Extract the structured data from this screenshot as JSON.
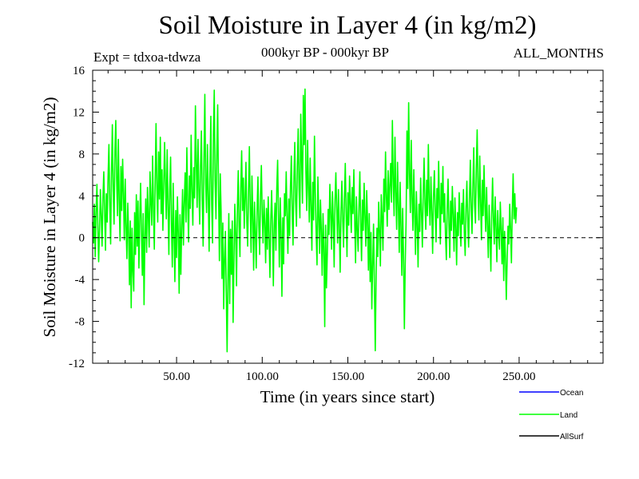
{
  "header": {
    "title": "Soil Moisture in Layer 4 (in kg/m2)",
    "expt": "Expt = tdxoa-tdwza",
    "period": "000kyr BP - 000kyr BP",
    "months": "ALL_MONTHS"
  },
  "chart_data": {
    "type": "line",
    "xlabel": "Time (in years since start)",
    "ylabel": "Soil Moisture in Layer 4 (in kg/m2)",
    "xlim": [
      1,
      299
    ],
    "ylim": [
      -12,
      16
    ],
    "x_ticks": [
      50,
      100,
      150,
      200,
      250
    ],
    "x_tick_labels": [
      "50.00",
      "100.00",
      "150.00",
      "200.00",
      "250.00"
    ],
    "y_ticks": [
      -12,
      -8,
      -4,
      0,
      4,
      8,
      12,
      16
    ],
    "y_tick_labels": [
      "-12",
      "-8",
      "-4",
      "0",
      "4",
      "8",
      "12",
      "16"
    ],
    "zero_line": "dashed",
    "legend_position": "bottom-right",
    "series": [
      {
        "name": "Ocean",
        "color": "#0000ff",
        "x": [],
        "values": []
      },
      {
        "name": "Land",
        "color": "#00ff00",
        "x_start": 1,
        "x_step": 0.5,
        "values": [
          1.5,
          -0.5,
          3.2,
          -1.8,
          2.4,
          5.1,
          1.2,
          -2.3,
          0.8,
          4.6,
          2.2,
          -0.8,
          3.8,
          6.3,
          2.5,
          -1.2,
          4.2,
          1.5,
          5.8,
          8.9,
          3.1,
          -0.6,
          6.2,
          10.8,
          4.5,
          1.3,
          8.3,
          11.2,
          5.7,
          2.1,
          9.4,
          3.4,
          -0.3,
          6.8,
          2.6,
          7.5,
          4.2,
          -0.2,
          5.6,
          1.1,
          -2.0,
          3.3,
          0.4,
          -4.5,
          1.6,
          -6.7,
          0.9,
          -3.2,
          -5.1,
          2.4,
          -1.6,
          4.1,
          -0.8,
          3.5,
          -2.9,
          1.8,
          5.2,
          0.6,
          -3.6,
          2.3,
          -6.4,
          0.1,
          3.7,
          -1.4,
          4.8,
          2.1,
          -0.9,
          6.3,
          3.4,
          1.2,
          7.8,
          2.8,
          -1.1,
          5.4,
          10.9,
          4.6,
          1.5,
          8.2,
          3.7,
          9.6,
          2.3,
          6.5,
          0.7,
          4.9,
          9.1,
          5.3,
          1.8,
          8.4,
          3.2,
          -1.6,
          4.6,
          7.7,
          1.4,
          -2.8,
          5.2,
          0.3,
          -4.2,
          2.6,
          -1.9,
          3.9,
          0.5,
          -5.3,
          2.2,
          -3.5,
          1.1,
          4.6,
          -0.7,
          3.4,
          6.2,
          1.5,
          8.6,
          3.3,
          -0.4,
          5.9,
          2.8,
          9.8,
          4.4,
          1.2,
          6.7,
          3.8,
          12.6,
          7.2,
          2.9,
          9.4,
          4.6,
          1.3,
          6.8,
          10.2,
          3.6,
          -0.8,
          7.5,
          13.7,
          5.2,
          2.4,
          8.9,
          4.1,
          -1.3,
          6.6,
          11.6,
          3.2,
          -0.5,
          9.8,
          14.1,
          5.4,
          1.8,
          8.2,
          12.7,
          4.3,
          -2.2,
          6.1,
          2.5,
          -3.9,
          1.4,
          -6.8,
          -2.1,
          0.6,
          -5.2,
          -10.9,
          -4.1,
          2.3,
          -6.3,
          0.8,
          -3.5,
          1.6,
          -8.1,
          -2.4,
          3.2,
          0.4,
          -4.6,
          2.7,
          6.4,
          1.1,
          -1.8,
          4.8,
          8.3,
          2.6,
          5.7,
          0.9,
          3.6,
          7.2,
          1.5,
          -0.8,
          4.3,
          8.7,
          3.1,
          -1.4,
          5.9,
          2.2,
          -3.1,
          3.4,
          0.6,
          -2.9,
          2.5,
          5.8,
          1.2,
          -1.6,
          4.1,
          6.9,
          2.3,
          -0.5,
          3.6,
          1.4,
          -2.4,
          2.8,
          -1.1,
          3.9,
          0.3,
          -3.8,
          1.7,
          4.5,
          0.9,
          -4.6,
          1.2,
          3.3,
          -1.2,
          4.7,
          7.4,
          2.1,
          -2.8,
          3.8,
          0.6,
          -5.6,
          1.9,
          -2.5,
          4.2,
          2.1,
          6.3,
          1.8,
          -1.5,
          3.7,
          0.2,
          4.9,
          7.8,
          2.4,
          -0.7,
          5.6,
          9.1,
          3.5,
          1.1,
          6.8,
          10.4,
          4.7,
          1.9,
          11.8,
          7.6,
          3.3,
          13.6,
          8.9,
          14.2,
          6.4,
          2.6,
          9.3,
          4.8,
          1.5,
          7.6,
          3.1,
          -1.2,
          5.3,
          1.7,
          9.7,
          4.2,
          0.4,
          -2.6,
          5.8,
          2.1,
          -1.5,
          3.6,
          0.8,
          -3.6,
          2.3,
          -0.9,
          -8.5,
          1.2,
          -4.8,
          -1.6,
          2.7,
          0.3,
          5.1,
          2.2,
          -1.1,
          4.4,
          1.6,
          -2.8,
          3.5,
          6.2,
          2.8,
          -0.5,
          4.6,
          1.3,
          -3.3,
          2.5,
          5.4,
          1.8,
          -0.9,
          3.7,
          7.1,
          2.4,
          -1.8,
          4.3,
          1.2,
          5.9,
          3.2,
          0.5,
          4.8,
          2.3,
          6.5,
          1.6,
          -2.4,
          3.9,
          0.8,
          -1.3,
          2.9,
          6.3,
          1.4,
          -2.2,
          3.6,
          0.7,
          5.2,
          2.1,
          -0.8,
          4.5,
          1.6,
          -3.1,
          2.3,
          -4.2,
          0.5,
          -6.8,
          -2.6,
          1.3,
          -4.5,
          -10.8,
          -3.6,
          0.9,
          -1.8,
          3.4,
          0.6,
          -2.7,
          4.1,
          1.9,
          -1.2,
          5.6,
          2.5,
          8.2,
          3.8,
          1.1,
          6.4,
          2.7,
          4.9,
          7.1,
          3.4,
          11.2,
          5.6,
          2.1,
          9.6,
          4.3,
          0.8,
          7.2,
          3.1,
          -1.4,
          5.3,
          1.2,
          -3.6,
          2.8,
          -1.9,
          -8.7,
          -2.5,
          1.6,
          10.2,
          4.7,
          12.9,
          6.1,
          2.4,
          9.3,
          3.8,
          0.7,
          6.5,
          2.2,
          -1.6,
          4.4,
          1.3,
          -2.8,
          3.2,
          0.6,
          5.7,
          2.4,
          -0.9,
          4.1,
          7.6,
          3.3,
          0.8,
          5.5,
          2.1,
          8.9,
          3.6,
          1.2,
          5.8,
          2.5,
          -1.5,
          3.9,
          6.4,
          2.6,
          -0.4,
          4.7,
          1.9,
          7.3,
          3.1,
          -0.6,
          5.2,
          2.3,
          6.8,
          1.5,
          4.2,
          0.3,
          -2.1,
          2.8,
          5.6,
          1.4,
          -1.9,
          3.5,
          0.7,
          4.9,
          2.2,
          -1.3,
          3.8,
          1.1,
          -2.6,
          2.4,
          0.2,
          4.3,
          1.8,
          -0.8,
          3.3,
          1.3,
          4.6,
          0.5,
          -1.7,
          2.9,
          5.4,
          1.6,
          -0.9,
          3.7,
          7.4,
          2.8,
          0.4,
          5.1,
          8.6,
          3.2,
          1.4,
          6.7,
          10.3,
          4.6,
          1.7,
          7.8,
          3.4,
          -0.2,
          5.5,
          2.1,
          6.9,
          3.3,
          0.6,
          4.8,
          1.2,
          -1.9,
          3.1,
          0.3,
          -3.2,
          2.2,
          5.7,
          1.8,
          -0.6,
          3.9,
          1.1,
          -2.3,
          2.6,
          0.5,
          -1.1,
          3.4,
          0.8,
          -2.5,
          1.9,
          -4.1,
          0.6,
          -1.7,
          -5.9,
          -2.2,
          1.1,
          -0.6,
          3.2,
          0.9,
          -2.4,
          2.6,
          6.1,
          1.8,
          4.2,
          1.4,
          2.9
        ]
      },
      {
        "name": "AllSurf",
        "color": "#000000",
        "x": [],
        "values": []
      }
    ]
  }
}
